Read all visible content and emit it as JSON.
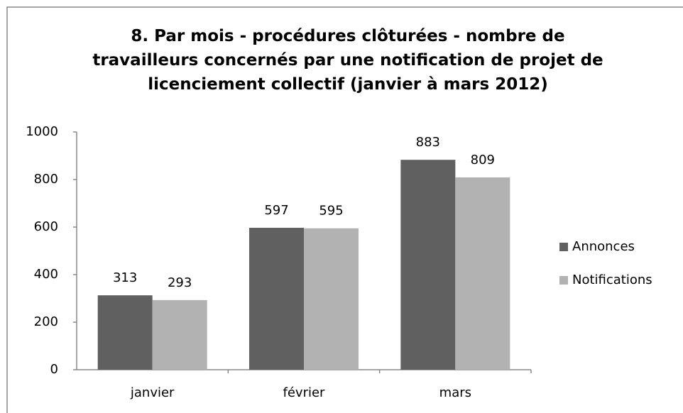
{
  "chart_data": {
    "type": "bar",
    "title": "8. Par mois - procédures clôturées - nombre de travailleurs concernés par une notification de projet de licenciement collectif (janvier à mars 2012)",
    "categories": [
      "janvier",
      "février",
      "mars"
    ],
    "series": [
      {
        "name": "Annonces",
        "color": "#606060",
        "values": [
          313,
          597,
          883
        ]
      },
      {
        "name": "Notifications",
        "color": "#b2b2b2",
        "values": [
          293,
          595,
          809
        ]
      }
    ],
    "ylim": [
      0,
      1000
    ],
    "yticks": [
      0,
      200,
      400,
      600,
      800,
      1000
    ],
    "grid": false,
    "legend": "right"
  }
}
